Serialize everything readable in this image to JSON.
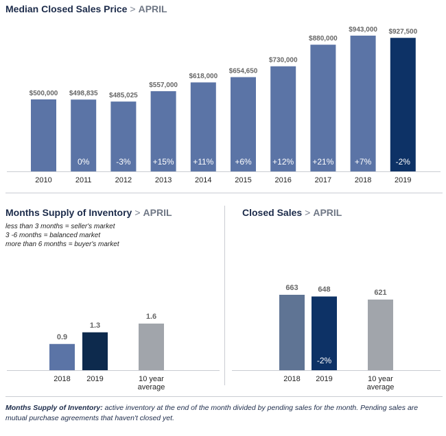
{
  "median": {
    "title": "Median Closed Sales Price",
    "separator": ">",
    "subtitle": "APRIL"
  },
  "months_supply": {
    "title": "Months Supply of Inventory",
    "separator": ">",
    "subtitle": "APRIL",
    "notes": [
      "less than 3 months = seller's market",
      "3 -6 months = balanced market",
      "more than 6 months = buyer's market"
    ]
  },
  "closed_sales": {
    "title": "Closed Sales",
    "separator": ">",
    "subtitle": "APRIL"
  },
  "footnote": {
    "term": "Months Supply of Inventory:",
    "text": " active inventory at the end of the month divided by pending sales for the month. Pending sales are mutual purchase agreements that haven't closed yet."
  },
  "colors": {
    "bar": "#5b74a6",
    "highlight": "#0d3266",
    "supply_2018": "#5b74a6",
    "supply_2019": "#0d2a4d",
    "average": "#a1a5ab",
    "sales_2018": "#5f7494",
    "sales_2019": "#0d3266"
  },
  "chart_data": [
    {
      "type": "bar",
      "title": "Median Closed Sales Price",
      "categories": [
        "2010",
        "2011",
        "2012",
        "2013",
        "2014",
        "2015",
        "2016",
        "2017",
        "2018",
        "2019"
      ],
      "values": [
        500000,
        498835,
        485025,
        557000,
        618000,
        654650,
        730000,
        880000,
        943000,
        927500
      ],
      "value_labels": [
        "$500,000",
        "$498,835",
        "$485,025",
        "$557,000",
        "$618,000",
        "$654,650",
        "$730,000",
        "$880,000",
        "$943,000",
        "$927,500"
      ],
      "change_labels": [
        "",
        "0%",
        "-3%",
        "+15%",
        "+11%",
        "+6%",
        "+12%",
        "+21%",
        "+7%",
        "-2%"
      ],
      "ylim": [
        0,
        1000000
      ]
    },
    {
      "type": "bar",
      "title": "Months Supply of Inventory",
      "categories": [
        "2018",
        "2019",
        "10 year average"
      ],
      "values": [
        0.9,
        1.3,
        1.6
      ],
      "value_labels": [
        "0.9",
        "1.3",
        "1.6"
      ],
      "ylim": [
        0,
        4
      ]
    },
    {
      "type": "bar",
      "title": "Closed Sales",
      "categories": [
        "2018",
        "2019",
        "10 year average"
      ],
      "values": [
        663,
        648,
        621
      ],
      "value_labels": [
        "663",
        "648",
        "621"
      ],
      "change_labels": [
        "",
        "-2%",
        ""
      ],
      "ylim": [
        0,
        1000
      ]
    }
  ]
}
